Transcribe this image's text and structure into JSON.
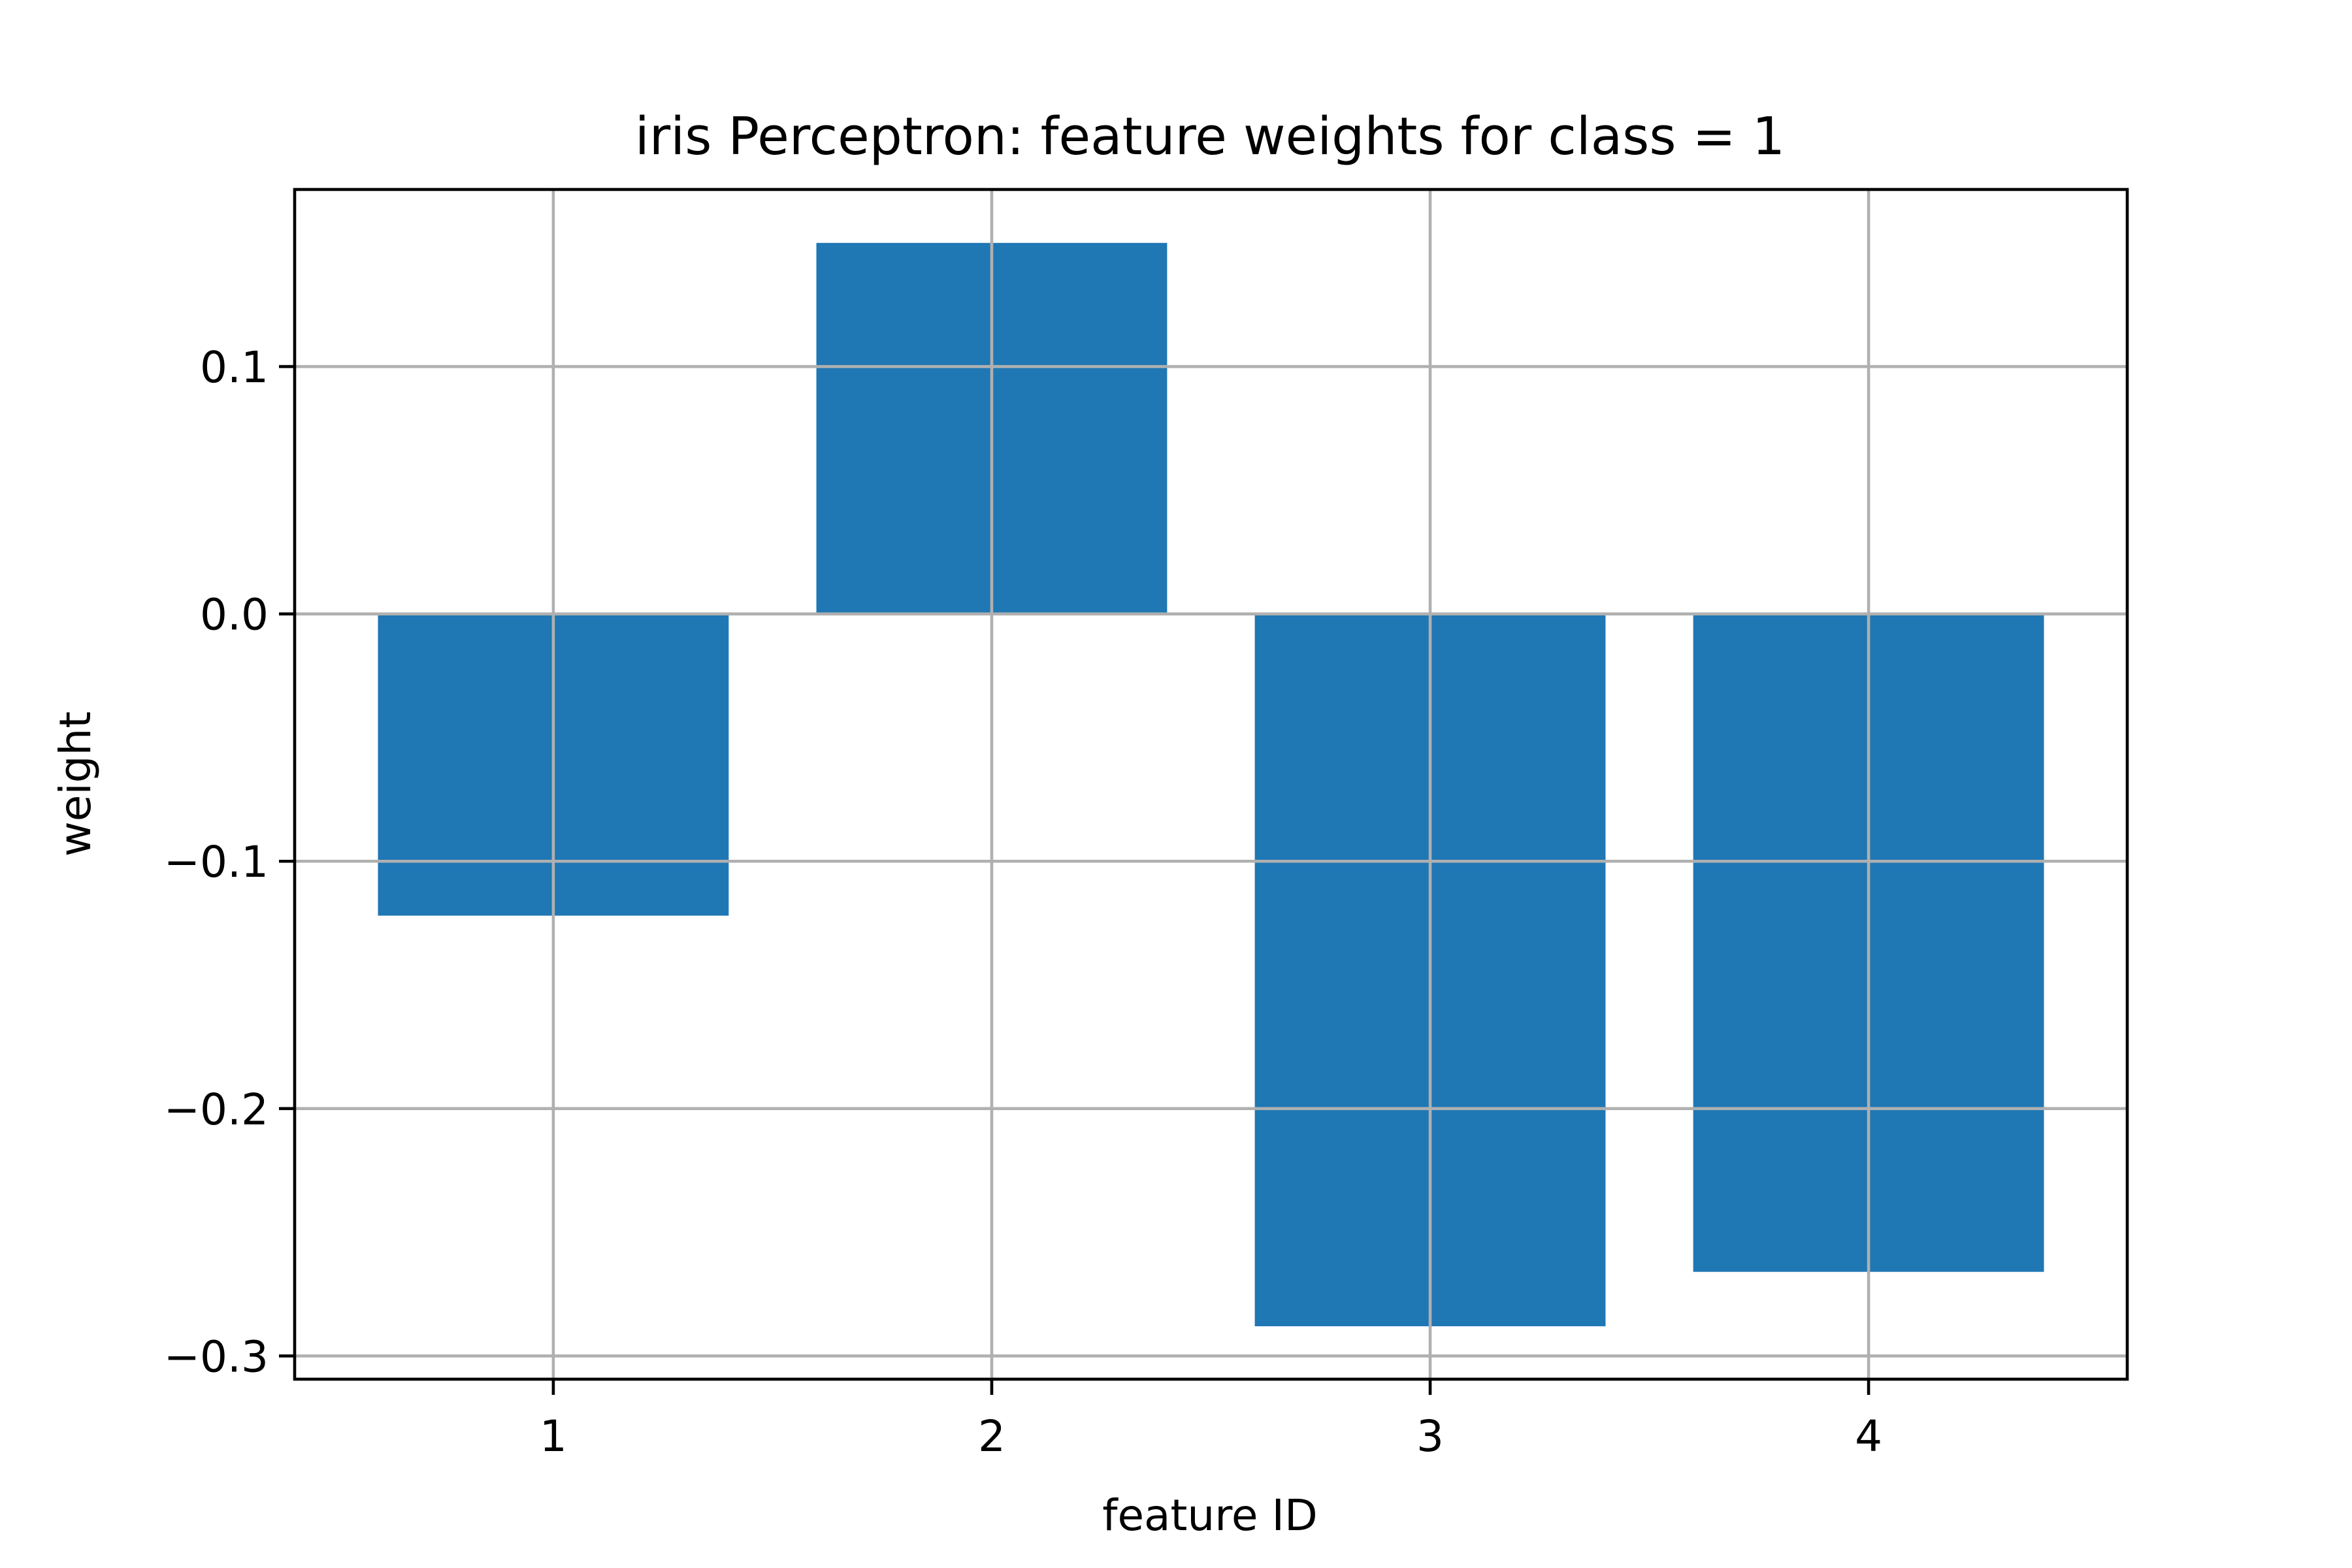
{
  "chart_data": {
    "type": "bar",
    "title": "iris Perceptron: feature weights for class = 1",
    "xlabel": "feature ID",
    "ylabel": "weight",
    "categories": [
      "1",
      "2",
      "3",
      "4"
    ],
    "values": [
      -0.122,
      0.15,
      -0.288,
      -0.266
    ],
    "bar_color": "#1f77b4",
    "x_range": [
      0.41,
      4.59
    ],
    "ylim": [
      -0.3094,
      0.1716
    ],
    "yticks": [
      0.1,
      0.0,
      -0.1,
      -0.2,
      -0.3
    ],
    "ytick_labels": [
      "0.1",
      "0.0",
      "−0.1",
      "−0.2",
      "−0.3"
    ],
    "xticks": [
      1,
      2,
      3,
      4
    ],
    "xtick_labels": [
      "1",
      "2",
      "3",
      "4"
    ],
    "bar_width": 0.8,
    "grid": true
  }
}
